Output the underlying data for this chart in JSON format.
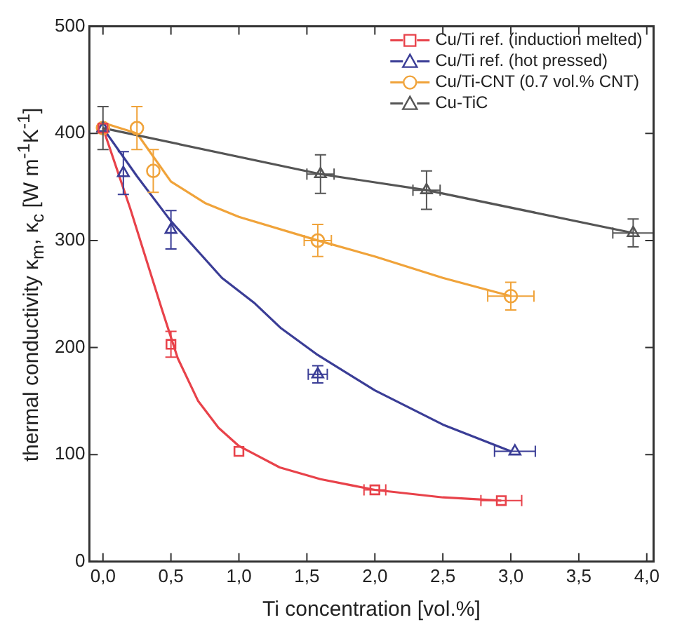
{
  "chart_data": {
    "type": "scatter",
    "xlabel": "Ti concentration [vol.%]",
    "ylabel": "thermal conductivity κ$_{m}$, κ$_{c}$ [W m$^{-1}$K$^{-1}$]",
    "xlim": [
      -0.1,
      4.05
    ],
    "ylim": [
      0,
      500
    ],
    "xticks": [
      {
        "value": 0,
        "label": "0,0"
      },
      {
        "value": 0.5,
        "label": "0,5"
      },
      {
        "value": 1,
        "label": "1,0"
      },
      {
        "value": 1.5,
        "label": "1,5"
      },
      {
        "value": 2,
        "label": "2,0"
      },
      {
        "value": 2.5,
        "label": "2,5"
      },
      {
        "value": 3,
        "label": "3,0"
      },
      {
        "value": 3.5,
        "label": "3,5"
      },
      {
        "value": 4,
        "label": "4,0"
      }
    ],
    "yticks": [
      0,
      100,
      200,
      300,
      400,
      500
    ],
    "grid": false,
    "legend": "top right",
    "series": [
      {
        "name": "Cu/Ti ref. (induction melted)",
        "marker": "square",
        "color": "#e8424a",
        "x": [
          0,
          0.5,
          1.0,
          2.0,
          2.93
        ],
        "values": [
          405,
          203,
          103,
          67,
          57
        ],
        "errors": [
          null,
          12,
          null,
          null,
          null
        ],
        "xerrors": [
          null,
          null,
          null,
          0.08,
          0.15
        ]
      },
      {
        "name": "Cu/Ti ref. (hot pressed)",
        "marker": "triangle",
        "color": "#3a3d96",
        "x": [
          0,
          0.15,
          0.5,
          1.58,
          3.03
        ],
        "values": [
          405,
          363,
          310,
          175,
          103
        ],
        "errors": [
          null,
          20,
          18,
          8,
          null
        ],
        "xerrors": [
          null,
          null,
          null,
          0.07,
          0.15
        ]
      },
      {
        "name": "Cu/Ti-CNT (0.7 vol.% CNT)",
        "marker": "circle",
        "color": "#f0a33a",
        "x": [
          0,
          0.25,
          0.37,
          1.58,
          3.0
        ],
        "values": [
          405,
          405,
          365,
          300,
          248
        ],
        "errors": [
          null,
          20,
          20,
          15,
          13
        ],
        "xerrors": [
          null,
          null,
          null,
          0.1,
          0.17
        ]
      },
      {
        "name": "Cu-TiC",
        "type": "line",
        "marker": "triangle",
        "color": "#555555",
        "x": [
          0,
          1.6,
          2.38,
          3.9
        ],
        "values": [
          405,
          362,
          347,
          307
        ],
        "errors": [
          20,
          18,
          18,
          13
        ],
        "xerrors": [
          null,
          0.1,
          0.1,
          0.15
        ]
      },
      {
        "type": "line",
        "marker": "none",
        "color": "#e8424a",
        "x": [
          0,
          0.2,
          0.43,
          0.55,
          0.7,
          0.85,
          1.0,
          1.3,
          1.6,
          2.0,
          2.5,
          2.93
        ],
        "values": [
          405,
          330,
          237,
          190,
          150,
          125,
          108,
          88,
          77,
          67,
          60,
          57
        ]
      },
      {
        "type": "line",
        "marker": "none",
        "color": "#3a3d96",
        "x": [
          0,
          0.25,
          0.5,
          0.875,
          1.11,
          1.31,
          1.58,
          2.0,
          2.5,
          3.0
        ],
        "values": [
          405,
          360,
          318,
          265,
          242,
          218,
          193,
          160,
          128,
          103
        ]
      },
      {
        "type": "line",
        "marker": "none",
        "color": "#f0a33a",
        "x": [
          0,
          0.25,
          0.5,
          0.75,
          1.0,
          1.58,
          2.0,
          2.5,
          3.0
        ],
        "values": [
          410,
          400,
          355,
          335,
          322,
          300,
          285,
          265,
          248
        ]
      }
    ]
  }
}
